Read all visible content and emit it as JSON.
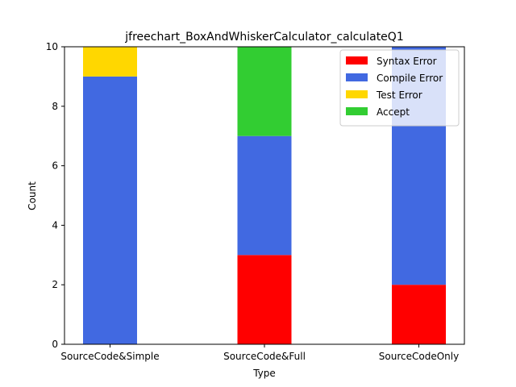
{
  "chart_data": {
    "type": "bar",
    "stacked": true,
    "title": "jfreechart_BoxAndWhiskerCalculator_calculateQ1",
    "xlabel": "Type",
    "ylabel": "Count",
    "categories": [
      "SourceCode&Simple",
      "SourceCode&Full",
      "SourceCodeOnly"
    ],
    "ylim": [
      0,
      10
    ],
    "yticks": [
      0,
      2,
      4,
      6,
      8,
      10
    ],
    "grid": false,
    "legend_position": "top-right",
    "series": [
      {
        "name": "Syntax Error",
        "color": "#ff0000",
        "values": [
          0,
          3,
          2
        ]
      },
      {
        "name": "Compile Error",
        "color": "#4169e1",
        "values": [
          9,
          4,
          8
        ]
      },
      {
        "name": "Test Error",
        "color": "#ffd700",
        "values": [
          1,
          0,
          0
        ]
      },
      {
        "name": "Accept",
        "color": "#32cd32",
        "values": [
          0,
          3,
          0
        ]
      }
    ]
  }
}
